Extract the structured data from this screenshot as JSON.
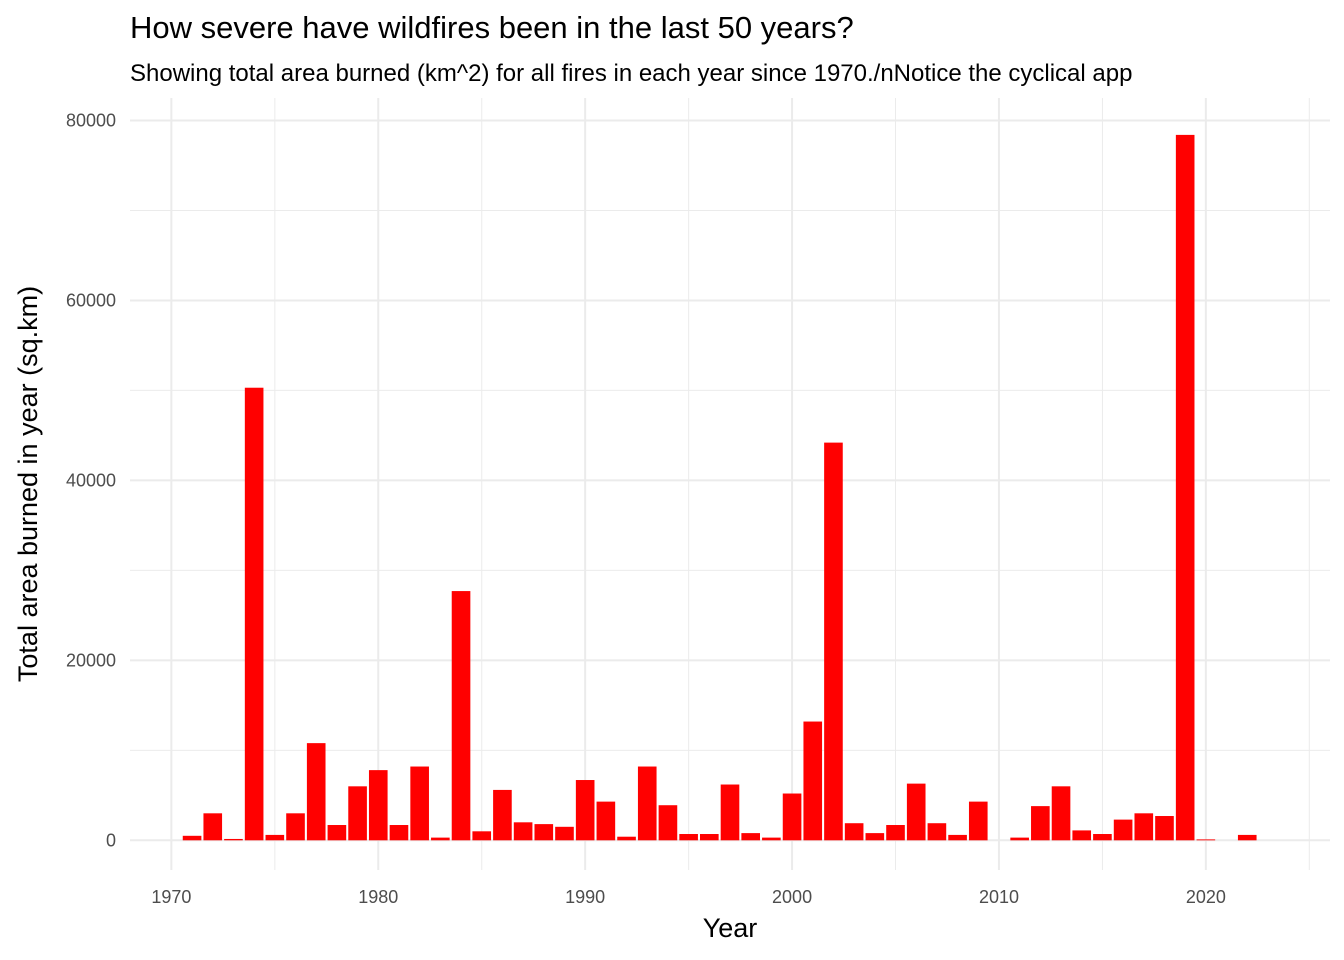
{
  "chart_data": {
    "type": "bar",
    "title": "How severe have wildfires been in the last 50 years?",
    "subtitle": "Showing total area burned (km^2) for all fires in each year since 1970./nNotice the cyclical app",
    "xlabel": "Year",
    "ylabel": "Total area burned in year (sq.km)",
    "x_ticks": [
      "1970",
      "1980",
      "1990",
      "2000",
      "2010",
      "2020"
    ],
    "y_ticks": [
      "0",
      "20000",
      "40000",
      "60000",
      "80000"
    ],
    "xlim": [
      1968,
      2026
    ],
    "ylim": [
      -3300,
      82500
    ],
    "grid": true,
    "bar_color": "#FF0000",
    "grid_color": "#EBEBEB",
    "background_color": "#FFFFFF",
    "x": [
      1971,
      1972,
      1973,
      1974,
      1975,
      1976,
      1977,
      1978,
      1979,
      1980,
      1981,
      1982,
      1983,
      1984,
      1985,
      1986,
      1987,
      1988,
      1989,
      1990,
      1991,
      1992,
      1993,
      1994,
      1995,
      1996,
      1997,
      1998,
      1999,
      2000,
      2001,
      2002,
      2003,
      2004,
      2005,
      2006,
      2007,
      2008,
      2009,
      2011,
      2012,
      2013,
      2014,
      2015,
      2016,
      2017,
      2018,
      2019,
      2020,
      2022
    ],
    "values": [
      500,
      3000,
      150,
      50300,
      600,
      3000,
      10800,
      1700,
      6000,
      7800,
      1700,
      8200,
      300,
      27700,
      1000,
      5600,
      2000,
      1800,
      1500,
      6700,
      4300,
      400,
      8200,
      3900,
      700,
      700,
      6200,
      800,
      300,
      5200,
      13200,
      44200,
      1900,
      800,
      1700,
      6300,
      1900,
      600,
      4300,
      300,
      3800,
      6000,
      1100,
      700,
      2300,
      3000,
      2700,
      78400,
      100,
      600
    ]
  }
}
